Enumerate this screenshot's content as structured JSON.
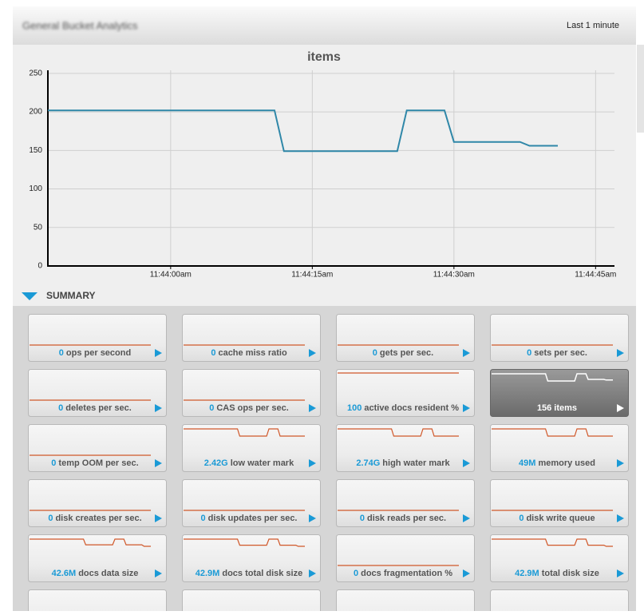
{
  "header": {
    "title": "General Bucket Analytics",
    "range": "Last 1 minute"
  },
  "chart": {
    "type": "line",
    "title": "items",
    "color": "#2f87a8",
    "x": [
      "11:43:47am",
      "11:44:11am",
      "11:44:12am",
      "11:44:24am",
      "11:44:25am",
      "11:44:29am",
      "11:44:30am",
      "11:44:37am",
      "11:44:38am",
      "11:44:41am"
    ],
    "values": [
      202,
      202,
      149,
      149,
      202,
      202,
      161,
      161,
      156,
      156
    ],
    "xlim": [
      "11:43:47am",
      "11:44:47am"
    ],
    "xticks": [
      "11:44:00am",
      "11:44:15am",
      "11:44:30am",
      "11:44:45am"
    ],
    "ylim": [
      0,
      254
    ],
    "yticks": [
      0,
      50,
      100,
      150,
      200,
      250
    ],
    "grid": true
  },
  "summary": {
    "title": "SUMMARY",
    "tiles": [
      {
        "value": "0",
        "label": "ops per second",
        "spark": [
          0,
          0
        ]
      },
      {
        "value": "0",
        "label": "cache miss ratio",
        "spark": [
          0,
          0
        ]
      },
      {
        "value": "0",
        "label": "gets per sec.",
        "spark": [
          0,
          0
        ]
      },
      {
        "value": "0",
        "label": "sets per sec.",
        "spark": [
          0,
          0
        ]
      },
      {
        "value": "0",
        "label": "deletes per sec.",
        "spark": [
          0,
          0
        ]
      },
      {
        "value": "0",
        "label": "CAS ops per sec.",
        "spark": [
          0,
          0
        ]
      },
      {
        "value": "100",
        "label": "active docs resident %",
        "spark": [
          100,
          100
        ]
      },
      {
        "value": "156",
        "label": "items",
        "spark": [
          202,
          202,
          149,
          149,
          202,
          202,
          161,
          161,
          156,
          156
        ],
        "selected": true
      },
      {
        "value": "0",
        "label": "temp OOM per sec.",
        "spark": [
          0,
          0
        ]
      },
      {
        "value": "2.42G",
        "label": "low water mark",
        "spark": [
          2.6,
          2.6,
          2.42,
          2.42,
          2.6,
          2.6,
          2.42,
          2.42,
          2.42,
          2.42
        ]
      },
      {
        "value": "2.74G",
        "label": "high water mark",
        "spark": [
          2.95,
          2.95,
          2.74,
          2.74,
          2.95,
          2.95,
          2.74,
          2.74,
          2.74,
          2.74
        ]
      },
      {
        "value": "49M",
        "label": "memory used",
        "spark": [
          52,
          52,
          49,
          49,
          52,
          52,
          49,
          49,
          49,
          49
        ]
      },
      {
        "value": "0",
        "label": "disk creates per sec.",
        "spark": [
          0,
          0
        ]
      },
      {
        "value": "0",
        "label": "disk updates per sec.",
        "spark": [
          0,
          0
        ]
      },
      {
        "value": "0",
        "label": "disk reads per sec.",
        "spark": [
          0,
          0
        ]
      },
      {
        "value": "0",
        "label": "disk write queue",
        "spark": [
          0,
          0
        ]
      },
      {
        "value": "42.6M",
        "label": "docs data size",
        "spark": [
          44,
          44,
          42.9,
          42.9,
          44,
          44,
          42.9,
          42.9,
          42.6,
          42.6
        ]
      },
      {
        "value": "42.9M",
        "label": "docs total disk size",
        "spark": [
          44.2,
          44.2,
          43.1,
          43.1,
          44.2,
          44.2,
          43.1,
          43.1,
          42.9,
          42.9
        ]
      },
      {
        "value": "0",
        "label": "docs fragmentation %",
        "spark": [
          0,
          0
        ]
      },
      {
        "value": "42.9M",
        "label": "total disk size",
        "spark": [
          44.2,
          44.2,
          43.1,
          43.1,
          44.2,
          44.2,
          43.1,
          43.1,
          42.9,
          42.9
        ]
      }
    ]
  }
}
